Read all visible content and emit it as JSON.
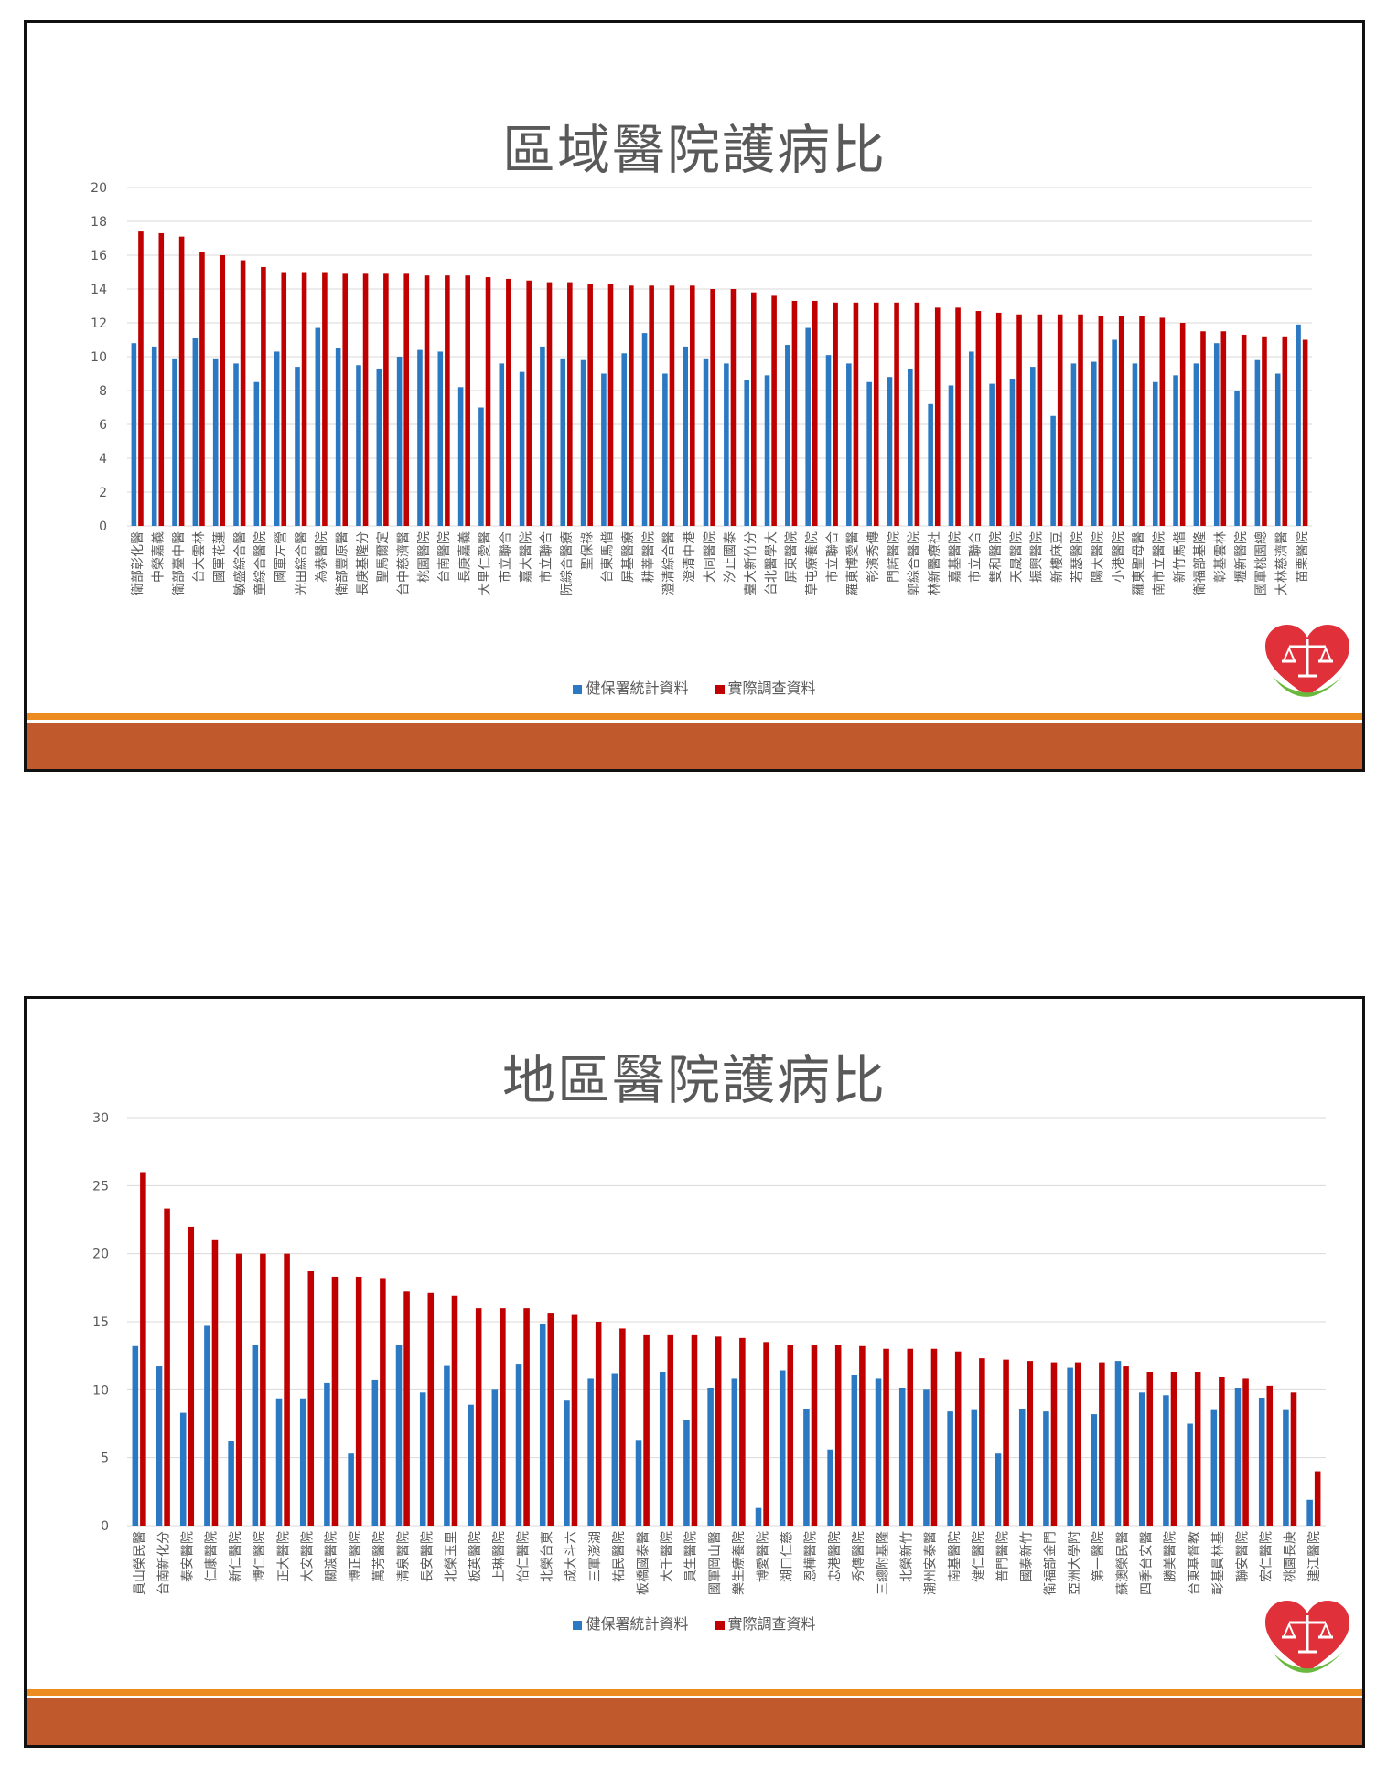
{
  "colors": {
    "series_stat": "#2b79c2",
    "series_survey": "#c00000",
    "footer_bar": "#c05a2c",
    "footer_line": "#ec8b1f",
    "grid": "#d9d9d9"
  },
  "slides": [
    {
      "title": "區域醫院護病比",
      "legend": [
        "健保署統計資料",
        "實際調查資料"
      ]
    },
    {
      "title": "地區醫院護病比",
      "legend": [
        "健保署統計資料",
        "實際調查資料"
      ]
    }
  ],
  "chart_data": [
    {
      "type": "bar",
      "title": "區域醫院護病比",
      "ylim": [
        0,
        20
      ],
      "yticks": [
        0,
        2,
        4,
        6,
        8,
        10,
        12,
        14,
        16,
        18,
        20
      ],
      "grid": true,
      "legend_position": "bottom",
      "categories": [
        "衛部彰化醫",
        "中榮嘉義",
        "衛部臺中醫",
        "台大雲林",
        "國軍花蓮",
        "敏盛綜合醫",
        "童綜合醫院",
        "國軍左營",
        "光田綜合醫",
        "為恭醫院",
        "衛部豐原醫",
        "長庚基隆分",
        "聖馬爾定",
        "台中慈濟醫",
        "桃園醫院",
        "台南醫院",
        "長庚嘉義",
        "大里仁愛醫",
        "市立聯合",
        "嘉大醫院",
        "市立聯合",
        "阮綜合醫療",
        "聖保祿",
        "台東馬偕",
        "屏基醫療",
        "耕莘醫院",
        "澄清綜合醫",
        "澄清中港",
        "大同醫院",
        "汐止國泰",
        "臺大新竹分",
        "台北醫學大",
        "屏東醫院",
        "草屯療養院",
        "市立聯合",
        "羅東博愛醫",
        "彰濱秀傳",
        "門諾醫院",
        "郭綜合醫院",
        "林新醫療社",
        "嘉基醫院",
        "市立聯合",
        "雙和醫院",
        "天晟醫院",
        "振興醫院",
        "新樓麻豆",
        "若瑟醫院",
        "陽大醫院",
        "小港醫院",
        "羅東聖母醫",
        "南市立醫院",
        "新竹馬偕",
        "衛福部基隆",
        "彰基雲林",
        "壢新醫院",
        "國軍桃園總",
        "大林慈濟醫",
        "苗栗醫院"
      ],
      "series": [
        {
          "name": "健保署統計資料",
          "values": [
            10.8,
            10.6,
            9.9,
            11.1,
            9.9,
            9.6,
            8.5,
            10.3,
            9.4,
            11.7,
            10.5,
            9.5,
            9.3,
            10.0,
            10.4,
            10.3,
            8.2,
            7.0,
            9.6,
            9.1,
            10.6,
            9.9,
            9.8,
            9.0,
            10.2,
            11.4,
            9.0,
            10.6,
            9.9,
            9.6,
            8.6,
            8.9,
            10.7,
            11.7,
            10.1,
            9.6,
            8.5,
            8.8,
            9.3,
            7.2,
            8.3,
            10.3,
            8.4,
            8.7,
            9.4,
            6.5,
            9.6,
            9.7,
            11.0,
            9.6,
            8.5,
            8.9,
            9.6,
            10.8,
            8.0,
            9.8,
            9.0,
            11.9
          ]
        },
        {
          "name": "實際調查資料",
          "values": [
            17.4,
            17.3,
            17.1,
            16.2,
            16.0,
            15.7,
            15.3,
            15.0,
            15.0,
            15.0,
            14.9,
            14.9,
            14.9,
            14.9,
            14.8,
            14.8,
            14.8,
            14.7,
            14.6,
            14.5,
            14.4,
            14.4,
            14.3,
            14.3,
            14.2,
            14.2,
            14.2,
            14.2,
            14.0,
            14.0,
            13.8,
            13.6,
            13.3,
            13.3,
            13.2,
            13.2,
            13.2,
            13.2,
            13.2,
            12.9,
            12.9,
            12.7,
            12.6,
            12.5,
            12.5,
            12.5,
            12.5,
            12.4,
            12.4,
            12.4,
            12.3,
            12.0,
            11.5,
            11.5,
            11.3,
            11.2,
            11.2,
            11.0
          ]
        }
      ]
    },
    {
      "type": "bar",
      "title": "地區醫院護病比",
      "ylim": [
        0,
        30
      ],
      "yticks": [
        0,
        5,
        10,
        15,
        20,
        25,
        30
      ],
      "grid": true,
      "legend_position": "bottom",
      "categories": [
        "員山榮民醫",
        "台南新化分",
        "泰安醫院",
        "仁康醫院",
        "新仁醫院",
        "博仁醫院",
        "正大醫院",
        "大安醫院",
        "關渡醫院",
        "博正醫院",
        "萬芳醫院",
        "清泉醫院",
        "長安醫院",
        "北榮玉里",
        "板英醫院",
        "上琳醫院",
        "怡仁醫院",
        "北榮台東",
        "成大斗六",
        "三軍澎湖",
        "祐民醫院",
        "板橋國泰醫",
        "大千醫院",
        "員生醫院",
        "國軍岡山醫",
        "樂生療養院",
        "博愛醫院",
        "湖口仁慈",
        "恩樺醫院",
        "忠港醫院",
        "秀傳醫院",
        "三總附基隆",
        "北榮新竹",
        "潮州安泰醫",
        "南基醫院",
        "健仁醫院",
        "普門醫院",
        "國泰新竹",
        "衛福部金門",
        "亞洲大學附",
        "第一醫院",
        "蘇澳榮民醫",
        "四季台安醫",
        "勝美醫院",
        "台東基督教",
        "彰基員林基",
        "聯安醫院",
        "宏仁醫院",
        "桃園長庚",
        "建江醫院"
      ],
      "series": [
        {
          "name": "健保署統計資料",
          "values": [
            13.2,
            11.7,
            8.3,
            14.7,
            6.2,
            13.3,
            9.3,
            9.3,
            10.5,
            5.3,
            10.7,
            13.3,
            9.8,
            11.8,
            8.9,
            10.0,
            11.9,
            14.8,
            9.2,
            10.8,
            11.2,
            6.3,
            11.3,
            7.8,
            10.1,
            10.8,
            1.3,
            11.4,
            8.6,
            5.6,
            11.1,
            10.8,
            10.1,
            10.0,
            8.4,
            8.5,
            5.3,
            8.6,
            8.4,
            11.6,
            8.2,
            12.1,
            9.8,
            9.6,
            7.5,
            8.5,
            10.1,
            9.4,
            8.5,
            1.9
          ]
        },
        {
          "name": "實際調查資料",
          "values": [
            26.0,
            23.3,
            22.0,
            21.0,
            20.0,
            20.0,
            20.0,
            18.7,
            18.3,
            18.3,
            18.2,
            17.2,
            17.1,
            16.9,
            16.0,
            16.0,
            16.0,
            15.6,
            15.5,
            15.0,
            14.5,
            14.0,
            14.0,
            14.0,
            13.9,
            13.8,
            13.5,
            13.3,
            13.3,
            13.3,
            13.2,
            13.0,
            13.0,
            13.0,
            12.8,
            12.3,
            12.2,
            12.1,
            12.0,
            12.0,
            12.0,
            11.7,
            11.3,
            11.3,
            11.3,
            10.9,
            10.8,
            10.3,
            9.8,
            4.0
          ]
        }
      ]
    }
  ]
}
